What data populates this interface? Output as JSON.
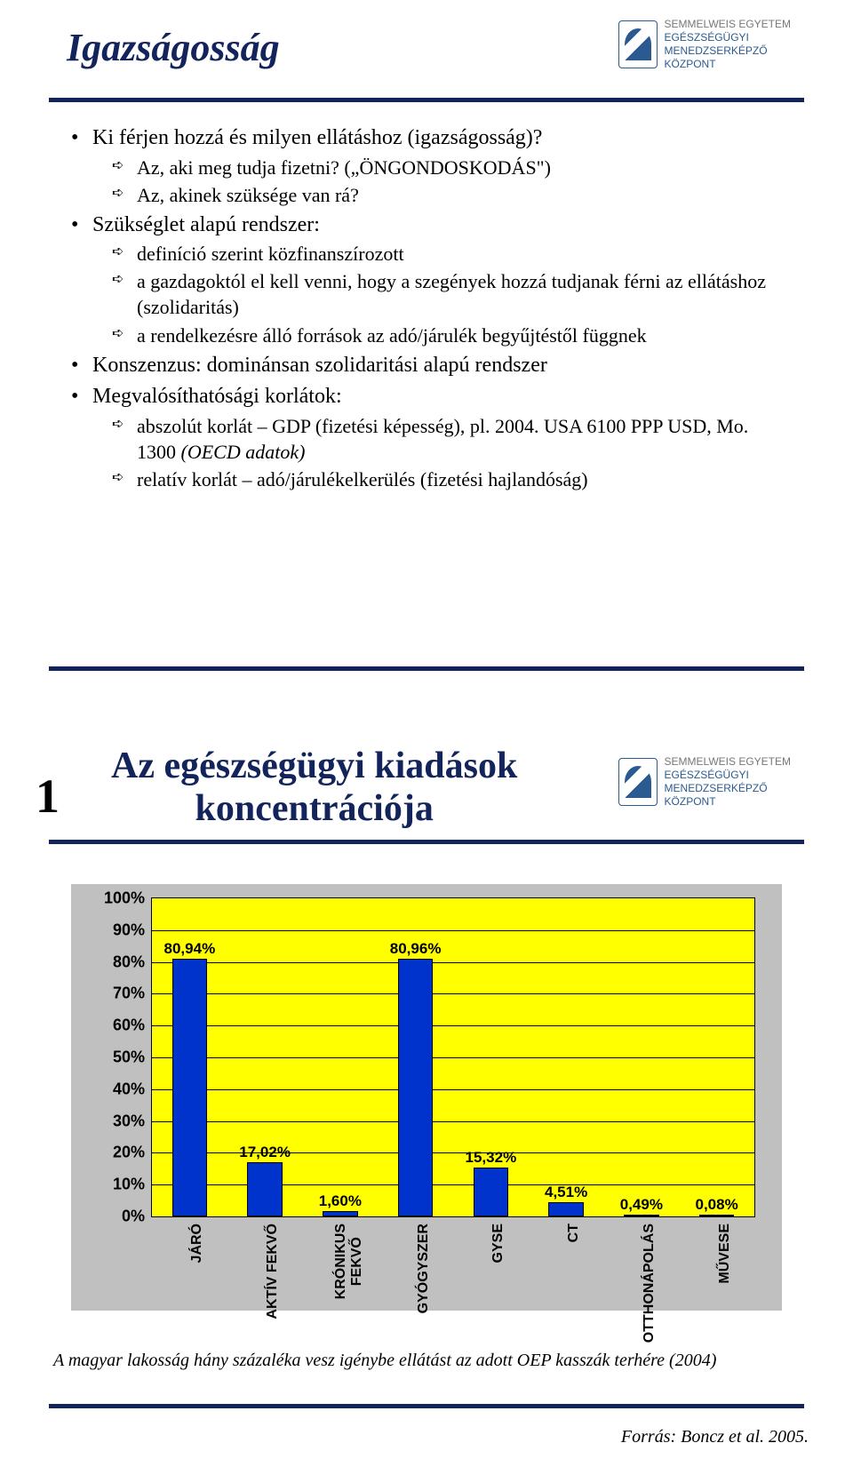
{
  "colors": {
    "title": "#13235b",
    "rule": "#13235b",
    "bullet_text": "#000000",
    "slide2_title": "#13235b",
    "slide2_num": "#000000",
    "chart_bg": "#ffff00",
    "bar_fill": "#0033cc",
    "bar_border": "#000000",
    "grid": "#000000",
    "chart_frame_bg": "#c0c0c0",
    "axis_text": "#000000"
  },
  "logo": {
    "line1": "SEMMELWEIS EGYETEM",
    "line2": "EGÉSZSÉGÜGYI",
    "line3": "MENEDZSERKÉPZŐ",
    "line4": "KÖZPONT"
  },
  "slide1": {
    "title": "Igazságosság",
    "bullets": [
      {
        "text": "Ki férjen hozzá és milyen ellátáshoz (igazságosság)?",
        "sub": [
          "Az, aki meg tudja fizetni? („ÖNGONDOSKODÁS\")",
          "Az, akinek szüksége van rá?"
        ]
      },
      {
        "text": "Szükséglet alapú rendszer:",
        "sub": [
          "definíció szerint közfinanszírozott",
          "a gazdagoktól el kell venni, hogy a szegények hozzá tudjanak férni az ellátáshoz (szolidaritás)",
          "a rendelkezésre álló források az adó/járulék begyűjtéstől függnek"
        ]
      },
      {
        "text": "Konszenzus: dominánsan szolidaritási alapú rendszer",
        "sub": []
      },
      {
        "text": "Megvalósíthatósági korlátok:",
        "sub": [
          "abszolút korlát – GDP (fizetési képesség), pl. 2004. USA 6100 PPP USD, Mo. 1300 (OECD adatok)",
          "relatív korlát – adó/járulékelkerülés (fizetési hajlandóság)"
        ]
      }
    ],
    "italic_phrase": "(OECD adatok)"
  },
  "slide2": {
    "number": "1",
    "title_line1": "Az egészségügyi kiadások",
    "title_line2": "koncentrációja",
    "chart": {
      "type": "bar",
      "y_min": 0,
      "y_max": 100,
      "y_step": 10,
      "y_suffix": "%",
      "background": "#ffff00",
      "frame_background": "#c0c0c0",
      "grid_color": "#000000",
      "bar_fill": "#0033cc",
      "bar_border": "#000000",
      "bar_width_pct": 5.8,
      "label_fontsize": 17,
      "categories": [
        "JÁRÓ",
        "AKTÍV FEKVŐ",
        "KRÓNIKUS FEKVŐ",
        "GYÓGYSZER",
        "GYSE",
        "CT",
        "OTTHONÁPOLÁS",
        "MŰVESE"
      ],
      "values": [
        80.94,
        17.02,
        1.6,
        80.96,
        15.32,
        4.51,
        0.49,
        0.08
      ],
      "value_labels": [
        "80,94%",
        "17,02%",
        "1,60%",
        "80,96%",
        "15,32%",
        "4,51%",
        "0,49%",
        "0,08%"
      ]
    },
    "caption": "A magyar lakosság hány százaléka vesz igénybe ellátást az adott OEP kasszák terhére (2004)",
    "source": "Forrás: Boncz et al. 2005."
  }
}
